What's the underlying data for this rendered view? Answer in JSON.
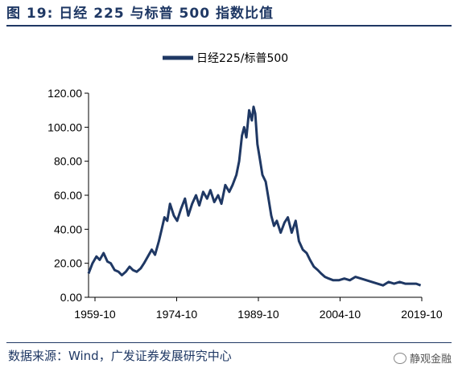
{
  "header": {
    "title": "图 19:  日经 225 与标普 500 指数比值"
  },
  "footer": {
    "source": "数据来源：Wind，广发证券发展研究中心",
    "watermark": "静观金融"
  },
  "chart_data": {
    "type": "line",
    "title": "",
    "xlabel": "",
    "ylabel": "",
    "ylim": [
      0,
      120
    ],
    "yticks": [
      "0.00",
      "20.00",
      "40.00",
      "60.00",
      "80.00",
      "100.00",
      "120.00"
    ],
    "xticks": [
      "1959-10",
      "1974-10",
      "1989-10",
      "2004-10",
      "2019-10"
    ],
    "xlim": [
      1959.78,
      2020.0
    ],
    "grid": false,
    "legend": "top-center",
    "colors": {
      "series": "#1f3864"
    },
    "series": [
      {
        "name": "日经225/标普500",
        "x": [
          1959.78,
          1960.5,
          1961.2,
          1961.8,
          1962.5,
          1963.2,
          1963.8,
          1964.5,
          1965.2,
          1965.8,
          1966.5,
          1967.2,
          1967.8,
          1968.5,
          1969.2,
          1969.8,
          1970.5,
          1971.2,
          1971.8,
          1972.5,
          1973.0,
          1973.5,
          1974.0,
          1974.5,
          1975.2,
          1975.8,
          1976.5,
          1977.2,
          1977.8,
          1978.5,
          1979.2,
          1979.8,
          1980.5,
          1981.2,
          1981.8,
          1982.5,
          1983.2,
          1983.8,
          1984.5,
          1985.2,
          1985.8,
          1986.5,
          1987.0,
          1987.5,
          1987.9,
          1988.3,
          1988.8,
          1989.3,
          1989.6,
          1989.9,
          1990.3,
          1990.7,
          1991.2,
          1991.8,
          1992.3,
          1992.8,
          1993.3,
          1993.8,
          1994.5,
          1995.2,
          1995.8,
          1996.5,
          1997.2,
          1997.8,
          1998.5,
          1999.2,
          1999.8,
          2000.5,
          2001.2,
          2001.8,
          2002.5,
          2003.2,
          2004.0,
          2005.0,
          2006.0,
          2007.0,
          2008.0,
          2009.0,
          2010.0,
          2011.0,
          2012.0,
          2013.0,
          2014.0,
          2015.0,
          2016.0,
          2017.0,
          2018.0,
          2019.0,
          2019.8
        ],
        "values": [
          14,
          20,
          24,
          22,
          26,
          21,
          20,
          16,
          15,
          13,
          15,
          18,
          16,
          15,
          17,
          20,
          24,
          28,
          25,
          33,
          40,
          47,
          45,
          55,
          48,
          45,
          52,
          58,
          48,
          55,
          60,
          54,
          62,
          58,
          63,
          56,
          60,
          55,
          66,
          62,
          66,
          72,
          80,
          95,
          100,
          94,
          110,
          104,
          112,
          108,
          90,
          82,
          72,
          68,
          58,
          48,
          42,
          45,
          38,
          44,
          47,
          38,
          45,
          33,
          28,
          26,
          22,
          18,
          16,
          14,
          12,
          11,
          10,
          10,
          11,
          10,
          12,
          11,
          10,
          9,
          8,
          7,
          9,
          8,
          9,
          8,
          8,
          8,
          7
        ]
      }
    ]
  }
}
